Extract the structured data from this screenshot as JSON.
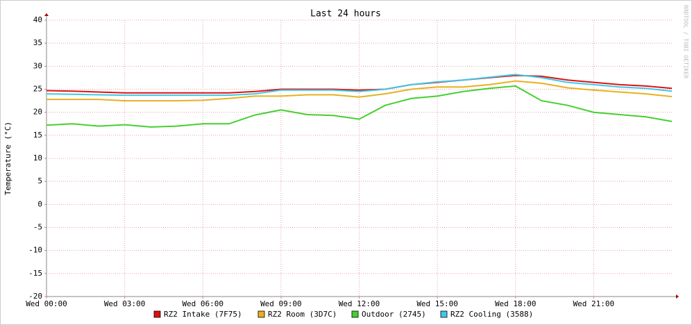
{
  "chart_data": {
    "type": "line",
    "title": "Last 24 hours",
    "y_label": "Temperature (°C)",
    "watermark": "RRDTOOL / TOBI OETIKER",
    "x": [
      0,
      1,
      2,
      3,
      4,
      5,
      6,
      7,
      8,
      9,
      10,
      11,
      12,
      13,
      14,
      15,
      16,
      17,
      18,
      19,
      20,
      21,
      22,
      23,
      24
    ],
    "xlim": [
      0,
      24
    ],
    "xticks": [
      {
        "value": 0,
        "label": "Wed 00:00"
      },
      {
        "value": 3,
        "label": "Wed 03:00"
      },
      {
        "value": 6,
        "label": "Wed 06:00"
      },
      {
        "value": 9,
        "label": "Wed 09:00"
      },
      {
        "value": 12,
        "label": "Wed 12:00"
      },
      {
        "value": 15,
        "label": "Wed 15:00"
      },
      {
        "value": 18,
        "label": "Wed 18:00"
      },
      {
        "value": 21,
        "label": "Wed 21:00"
      }
    ],
    "ylim": [
      -20,
      40
    ],
    "yticks": [
      -20,
      -15,
      -10,
      -5,
      0,
      5,
      10,
      15,
      20,
      25,
      30,
      35,
      40
    ],
    "grid": true,
    "series": [
      {
        "name": "RZ2 Intake (7F75)",
        "color": "#e01010",
        "values": [
          24.7,
          24.6,
          24.4,
          24.2,
          24.2,
          24.2,
          24.2,
          24.2,
          24.5,
          25,
          25,
          25,
          24.8,
          25,
          26,
          26.5,
          27,
          27.5,
          28,
          27.8,
          27,
          26.5,
          26,
          25.7,
          25.2
        ]
      },
      {
        "name": "RZ2 Room (3D7C)",
        "color": "#e8b020",
        "values": [
          22.8,
          22.8,
          22.8,
          22.5,
          22.5,
          22.5,
          22.6,
          23,
          23.5,
          23.5,
          23.8,
          23.8,
          23.3,
          24,
          25,
          25.5,
          25.5,
          26,
          26.8,
          26.3,
          25.3,
          24.8,
          24.4,
          24,
          23.4
        ]
      },
      {
        "name": "Outdoor (2745)",
        "color": "#44d030",
        "values": [
          17.2,
          17.5,
          17,
          17.3,
          16.8,
          17,
          17.5,
          17.5,
          19.4,
          20.5,
          19.5,
          19.3,
          18.5,
          21.5,
          23,
          23.5,
          24.5,
          25.2,
          25.7,
          22.5,
          21.5,
          20,
          19.5,
          19,
          18
        ]
      },
      {
        "name": "RZ2 Cooling (3588)",
        "color": "#40c8e8",
        "values": [
          24,
          23.9,
          23.8,
          23.7,
          23.7,
          23.7,
          23.7,
          23.7,
          24,
          24.8,
          24.8,
          24.8,
          24.5,
          25,
          26,
          26.6,
          27,
          27.6,
          28.2,
          27.5,
          26.5,
          26,
          25.5,
          25.2,
          24.6
        ]
      }
    ]
  }
}
